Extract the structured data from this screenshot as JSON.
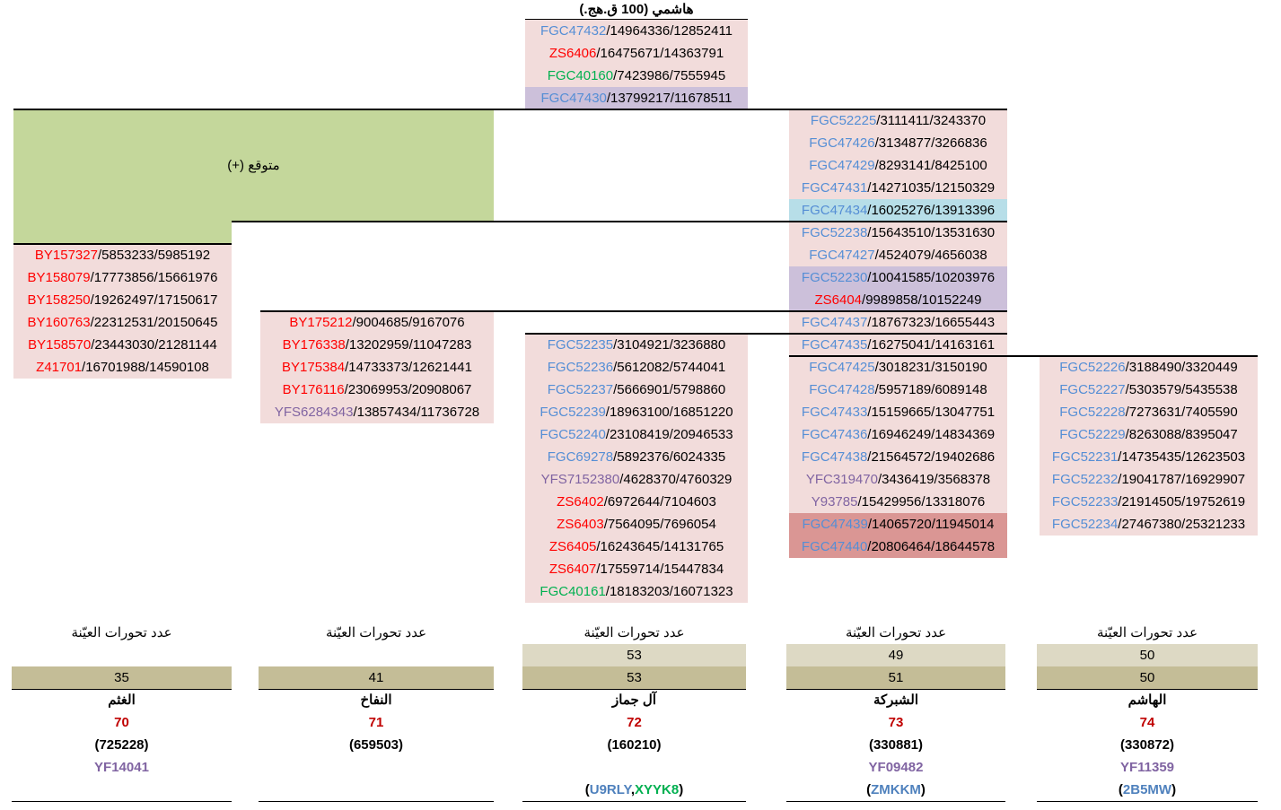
{
  "top": {
    "title": "هاشمي (100 ق.هج.)"
  },
  "expected": "متوقع (+)",
  "blocks": [
    {
      "rows": [
        {
          "snp": "FGC47432",
          "rest": "/14964336/12852411",
          "color": "#558ed5"
        },
        {
          "snp": "ZS6406",
          "rest": "/16475671/14363791",
          "color": "#ff0000"
        },
        {
          "snp": "FGC40160",
          "rest": "/7423986/7555945",
          "color": "#00b050"
        },
        {
          "snp": "FGC47430",
          "rest": "/13799217/11678511",
          "color": "#558ed5",
          "bg": "#ccc0da"
        }
      ]
    },
    {
      "rows": [
        {
          "snp": "FGC52225",
          "rest": "/3111411/3243370",
          "color": "#558ed5"
        },
        {
          "snp": "FGC47426",
          "rest": "/3134877/3266836",
          "color": "#558ed5"
        },
        {
          "snp": "FGC47429",
          "rest": "/8293141/8425100",
          "color": "#558ed5"
        },
        {
          "snp": "FGC47431",
          "rest": "/14271035/12150329",
          "color": "#558ed5"
        },
        {
          "snp": "FGC47434",
          "rest": "/16025276/13913396",
          "color": "#558ed5",
          "bg": "#b7dee8"
        },
        {
          "snp": "FGC52238",
          "rest": "/15643510/13531630",
          "color": "#558ed5"
        },
        {
          "snp": "FGC47427",
          "rest": "/4524079/4656038",
          "color": "#558ed5"
        },
        {
          "snp": "FGC52230",
          "rest": "/10041585/10203976",
          "color": "#558ed5",
          "bg": "#ccc0da"
        },
        {
          "snp": "ZS6404",
          "rest": "/9989858/10152249",
          "color": "#ff0000",
          "bg": "#ccc0da"
        },
        {
          "snp": "FGC47437",
          "rest": "/18767323/16655443",
          "color": "#558ed5"
        },
        {
          "snp": "FGC47435",
          "rest": "/16275041/14163161",
          "color": "#558ed5"
        },
        {
          "snp": "FGC47425",
          "rest": "/3018231/3150190",
          "color": "#558ed5"
        },
        {
          "snp": "FGC47428",
          "rest": "/5957189/6089148",
          "color": "#558ed5"
        },
        {
          "snp": "FGC47433",
          "rest": "/15159665/13047751",
          "color": "#558ed5"
        },
        {
          "snp": "FGC47436",
          "rest": "/16946249/14834369",
          "color": "#558ed5"
        },
        {
          "snp": "FGC47438",
          "rest": "/21564572/19402686",
          "color": "#558ed5"
        },
        {
          "snp": "YFC319470",
          "rest": "/3436419/3568378",
          "color": "#8064a2"
        },
        {
          "snp": "Y93785",
          "rest": "/15429956/13318076",
          "color": "#8064a2"
        },
        {
          "snp": "FGC47439",
          "rest": "/14065720/11945014",
          "color": "#558ed5",
          "bg": "#da9694"
        },
        {
          "snp": "FGC47440",
          "rest": "/20806464/18644578",
          "color": "#558ed5",
          "bg": "#da9694"
        }
      ]
    },
    {
      "rows": [
        {
          "snp": "BY157327",
          "rest": "/5853233/5985192",
          "color": "#ff0000"
        },
        {
          "snp": "BY158079",
          "rest": "/17773856/15661976",
          "color": "#ff0000"
        },
        {
          "snp": "BY158250",
          "rest": "/19262497/17150617",
          "color": "#ff0000"
        },
        {
          "snp": "BY160763",
          "rest": "/22312531/20150645",
          "color": "#ff0000"
        },
        {
          "snp": "BY158570",
          "rest": "/23443030/21281144",
          "color": "#ff0000"
        },
        {
          "snp": "Z41701",
          "rest": "/16701988/14590108",
          "color": "#ff0000"
        }
      ]
    },
    {
      "rows": [
        {
          "snp": "BY175212",
          "rest": "/9004685/9167076",
          "color": "#ff0000"
        },
        {
          "snp": "BY176338",
          "rest": "/13202959/11047283",
          "color": "#ff0000"
        },
        {
          "snp": "BY175384",
          "rest": "/14733373/12621441",
          "color": "#ff0000"
        },
        {
          "snp": "BY176116",
          "rest": "/23069953/20908067",
          "color": "#ff0000"
        },
        {
          "snp": "YFS6284343",
          "rest": "/13857434/11736728",
          "color": "#8064a2"
        }
      ]
    },
    {
      "rows": [
        {
          "snp": "FGC52235",
          "rest": "/3104921/3236880",
          "color": "#558ed5"
        },
        {
          "snp": "FGC52236",
          "rest": "/5612082/5744041",
          "color": "#558ed5"
        },
        {
          "snp": "FGC52237",
          "rest": "/5666901/5798860",
          "color": "#558ed5"
        },
        {
          "snp": "FGC52239",
          "rest": "/18963100/16851220",
          "color": "#558ed5"
        },
        {
          "snp": "FGC52240",
          "rest": "/23108419/20946533",
          "color": "#558ed5"
        },
        {
          "snp": "FGC69278",
          "rest": "/5892376/6024335",
          "color": "#558ed5"
        },
        {
          "snp": "YFS7152380",
          "rest": "/4628370/4760329",
          "color": "#8064a2"
        },
        {
          "snp": "ZS6402",
          "rest": "/6972644/7104603",
          "color": "#ff0000"
        },
        {
          "snp": "ZS6403",
          "rest": "/7564095/7696054",
          "color": "#ff0000"
        },
        {
          "snp": "ZS6405",
          "rest": "/16243645/14131765",
          "color": "#ff0000"
        },
        {
          "snp": "ZS6407",
          "rest": "/17559714/15447834",
          "color": "#ff0000"
        },
        {
          "snp": "FGC40161",
          "rest": "/18183203/16071323",
          "color": "#00b050"
        }
      ]
    },
    {
      "rows": [
        {
          "snp": "FGC52226",
          "rest": "/3188490/3320449",
          "color": "#558ed5"
        },
        {
          "snp": "FGC52227",
          "rest": "/5303579/5435538",
          "color": "#558ed5"
        },
        {
          "snp": "FGC52228",
          "rest": "/7273631/7405590",
          "color": "#558ed5"
        },
        {
          "snp": "FGC52229",
          "rest": "/8263088/8395047",
          "color": "#558ed5"
        },
        {
          "snp": "FGC52231",
          "rest": "/14735435/12623503",
          "color": "#558ed5"
        },
        {
          "snp": "FGC52232",
          "rest": "/19041787/16929907",
          "color": "#558ed5"
        },
        {
          "snp": "FGC52233",
          "rest": "/21914505/19752619",
          "color": "#558ed5"
        },
        {
          "snp": "FGC52234",
          "rest": "/27467380/25321233",
          "color": "#558ed5"
        }
      ]
    }
  ],
  "columns": [
    {
      "count_label": "عدد تحورات العيّنة",
      "counts": [
        35
      ],
      "name": "الغثم",
      "number": 70,
      "id": "(725228)",
      "ychr": "YF14041"
    },
    {
      "count_label": "عدد تحورات العيّنة",
      "counts": [
        41
      ],
      "name": "النفاخ",
      "number": 71,
      "id": "(659503)"
    },
    {
      "count_label": "عدد تحورات العيّنة",
      "counts": [
        53,
        53
      ],
      "name": "آل جماز",
      "number": 72,
      "id": "(160210)",
      "code": [
        {
          "text": "(",
          "color": "#000000"
        },
        {
          "text": "U9RLY",
          "color": "#4f81bd"
        },
        {
          "text": ",",
          "color": "#000000"
        },
        {
          "text": "XYYK8",
          "color": "#00b050"
        },
        {
          "text": ")",
          "color": "#000000"
        }
      ]
    },
    {
      "count_label": "عدد تحورات العيّنة",
      "counts": [
        49,
        51
      ],
      "name": "الشبركة",
      "number": 73,
      "id": "(330881)",
      "ychr": "YF09482",
      "code": [
        {
          "text": "(",
          "color": "#000000"
        },
        {
          "text": "ZMKKM",
          "color": "#4f81bd"
        },
        {
          "text": ")",
          "color": "#000000"
        }
      ]
    },
    {
      "count_label": "عدد تحورات العيّنة",
      "counts": [
        50,
        50
      ],
      "name": "الهاشم",
      "number": 74,
      "id": "(330872)",
      "ychr": "YF11359",
      "code": [
        {
          "text": "(",
          "color": "#000000"
        },
        {
          "text": "2B5MW",
          "color": "#4f81bd"
        },
        {
          "text": ")",
          "color": "#000000"
        }
      ]
    }
  ]
}
